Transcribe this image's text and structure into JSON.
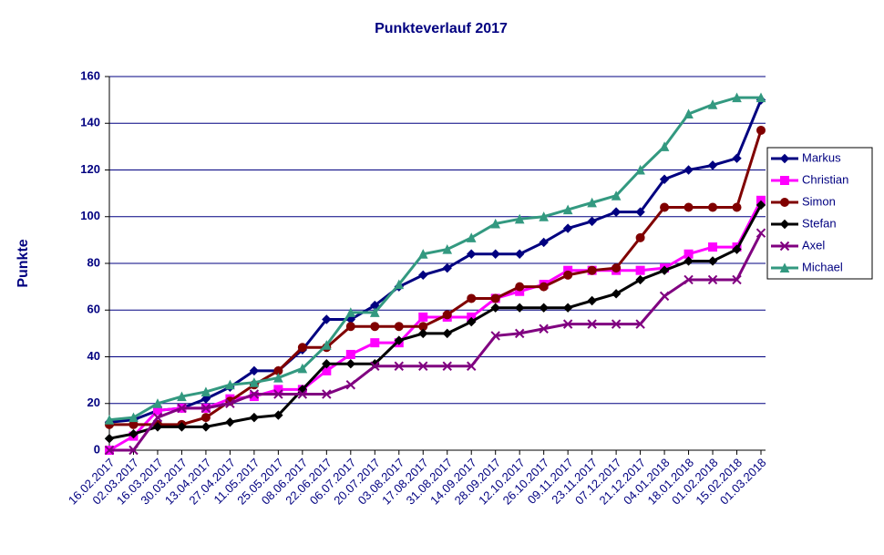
{
  "chart_data": {
    "type": "line",
    "title": "Punkteverlauf 2017",
    "y_label": "Punkte",
    "categories": [
      "16.02.2017",
      "02.03.2017",
      "16.03.2017",
      "30.03.2017",
      "13.04.2017",
      "27.04.2017",
      "11.05.2017",
      "25.05.2017",
      "08.06.2017",
      "22.06.2017",
      "06.07.2017",
      "20.07.2017",
      "03.08.2017",
      "17.08.2017",
      "31.08.2017",
      "14.09.2017",
      "28.09.2017",
      "12.10.2017",
      "26.10.2017",
      "09.11.2017",
      "23.11.2017",
      "07.12.2017",
      "21.12.2017",
      "04.01.2018",
      "18.01.2018",
      "01.02.2018",
      "15.02.2018",
      "01.03.2018"
    ],
    "series": [
      {
        "name": "Markus",
        "color": "#000080",
        "marker": "diamond",
        "values": [
          12,
          13,
          17,
          18,
          22,
          27,
          34,
          34,
          43,
          56,
          56,
          62,
          70,
          75,
          78,
          84,
          84,
          84,
          89,
          95,
          98,
          102,
          102,
          116,
          120,
          122,
          125,
          150
        ]
      },
      {
        "name": "Christian",
        "color": "#ff00ff",
        "marker": "square",
        "values": [
          0,
          6,
          17,
          18,
          18,
          22,
          23,
          26,
          26,
          34,
          41,
          46,
          46,
          57,
          57,
          57,
          65,
          68,
          71,
          77,
          77,
          77,
          77,
          78,
          84,
          87,
          87,
          107
        ]
      },
      {
        "name": "Simon",
        "color": "#800000",
        "marker": "circle",
        "values": [
          11,
          11,
          11,
          11,
          14,
          21,
          28,
          34,
          44,
          44,
          53,
          53,
          53,
          53,
          58,
          65,
          65,
          70,
          70,
          75,
          77,
          78,
          91,
          104,
          104,
          104,
          104,
          137
        ]
      },
      {
        "name": "Stefan",
        "color": "#000000",
        "marker": "diamond",
        "values": [
          5,
          7,
          10,
          10,
          10,
          12,
          14,
          15,
          26,
          37,
          37,
          37,
          47,
          50,
          50,
          55,
          61,
          61,
          61,
          61,
          64,
          67,
          73,
          77,
          81,
          81,
          86,
          105
        ]
      },
      {
        "name": "Axel",
        "color": "#800080",
        "marker": "x",
        "values": [
          0,
          0,
          14,
          18,
          18,
          20,
          24,
          24,
          24,
          24,
          28,
          36,
          36,
          36,
          36,
          36,
          49,
          50,
          52,
          54,
          54,
          54,
          54,
          66,
          73,
          73,
          73,
          93
        ]
      },
      {
        "name": "Michael",
        "color": "#339980",
        "marker": "triangle",
        "values": [
          13,
          14,
          20,
          23,
          25,
          28,
          29,
          31,
          35,
          45,
          59,
          59,
          71,
          84,
          86,
          91,
          97,
          99,
          100,
          103,
          106,
          109,
          120,
          130,
          144,
          148,
          151,
          151
        ]
      }
    ],
    "ylim": [
      0,
      160
    ],
    "yticks": [
      0,
      20,
      40,
      60,
      80,
      100,
      120,
      140,
      160
    ],
    "grid": true,
    "legend": "right"
  }
}
